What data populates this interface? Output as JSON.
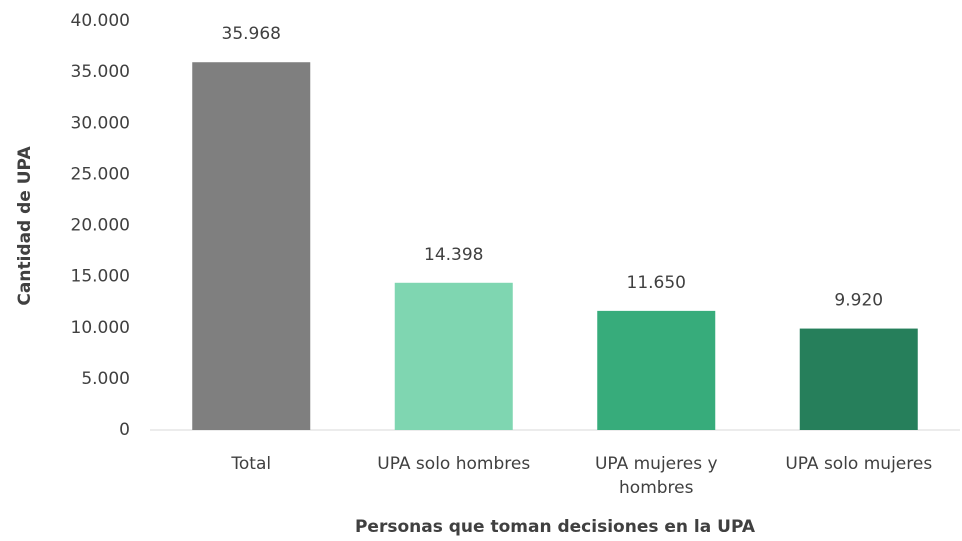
{
  "chart_data": {
    "type": "bar",
    "ylabel": "Cantidad de UPA",
    "xlabel": "Personas que toman decisiones en la UPA",
    "categories": [
      "Total",
      "UPA solo hombres",
      "UPA mujeres y hombres",
      "UPA solo mujeres"
    ],
    "values": [
      35968,
      14398,
      11650,
      9920
    ],
    "value_labels": [
      "35.968",
      "14.398",
      "11.650",
      "9.920"
    ],
    "colors": [
      "#7f7f7f",
      "#7fd6b1",
      "#37ac7b",
      "#267f5b"
    ],
    "ylim": [
      0,
      40000
    ],
    "yticks": [
      0,
      {
        "value": 5000,
        "label": "5.000"
      },
      {
        "value": 10000,
        "label": "10.000"
      },
      {
        "value": 15000,
        "label": "15.000"
      },
      {
        "value": 20000,
        "label": "20.000"
      },
      {
        "value": 25000,
        "label": "25.000"
      },
      {
        "value": 30000,
        "label": "30.000"
      },
      {
        "value": 35000,
        "label": "35.000"
      },
      {
        "value": 40000,
        "label": "40.000"
      }
    ],
    "grid": false
  }
}
